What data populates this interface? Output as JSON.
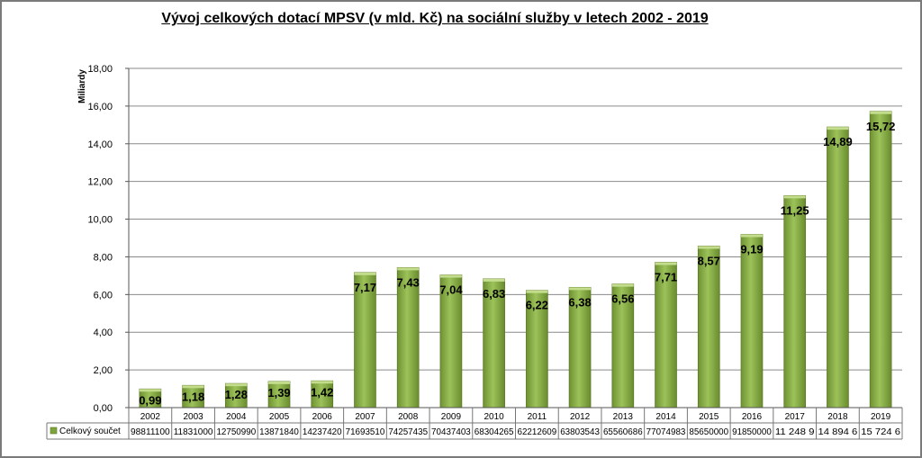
{
  "chart_data": {
    "type": "bar",
    "title": "Vývoj celkových dotací MPSV (v mld. Kč) na sociální služby v letech 2002 - 2019",
    "ylabel": "Miliardy",
    "ylim": [
      0,
      18
    ],
    "yticks": [
      "0,00",
      "2,00",
      "4,00",
      "6,00",
      "8,00",
      "10,00",
      "12,00",
      "14,00",
      "16,00",
      "18,00"
    ],
    "grid": true,
    "categories": [
      "2002",
      "2003",
      "2004",
      "2005",
      "2006",
      "2007",
      "2008",
      "2009",
      "2010",
      "2011",
      "2012",
      "2013",
      "2014",
      "2015",
      "2016",
      "2017",
      "2018",
      "2019"
    ],
    "series": [
      {
        "name": "Celkový součet",
        "values": [
          0.99,
          1.18,
          1.28,
          1.39,
          1.42,
          7.17,
          7.43,
          7.04,
          6.83,
          6.22,
          6.38,
          6.56,
          7.71,
          8.57,
          9.19,
          11.25,
          14.89,
          15.72
        ],
        "labels": [
          "0,99",
          "1,18",
          "1,28",
          "1,39",
          "1,42",
          "7,17",
          "7,43",
          "7,04",
          "6,83",
          "6,22",
          "6,38",
          "6,56",
          "7,71",
          "8,57",
          "9,19",
          "11,25",
          "14,89",
          "15,72"
        ],
        "color": "#8db04c"
      }
    ],
    "table_values": [
      "98811100",
      "11831000",
      "12750990",
      "13871840",
      "14237420",
      "71693510",
      "74257435",
      "70437403",
      "68304265",
      "62212609",
      "63803543",
      "65560686",
      "77074983",
      "85650000",
      "91850000",
      "11 248 9",
      "14 894 6",
      "15 724 6"
    ]
  }
}
